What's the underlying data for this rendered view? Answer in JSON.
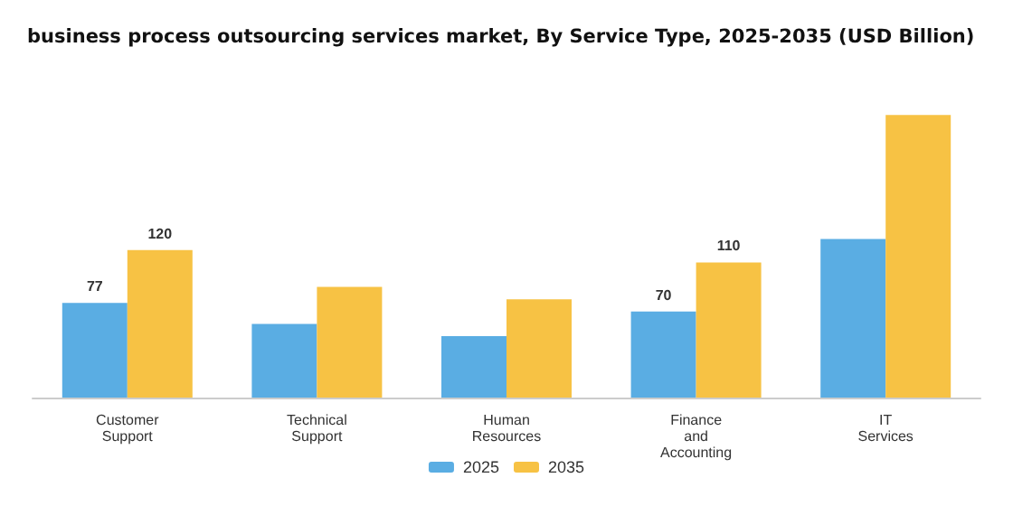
{
  "chart_data": {
    "type": "bar",
    "title": "business process outsourcing services market, By Service Type, 2025-2035 (USD Billion)",
    "categories": [
      "Customer\nSupport",
      "Technical\nSupport",
      "Human\nResources",
      "Finance\nand\nAccounting",
      "IT\nServices"
    ],
    "series": [
      {
        "name": "2025",
        "color": "#5aade3",
        "values": [
          77,
          60,
          50,
          70,
          129
        ],
        "value_labels": [
          "77",
          null,
          null,
          "70",
          null
        ]
      },
      {
        "name": "2035",
        "color": "#f7c244",
        "values": [
          120,
          90,
          80,
          110,
          230
        ],
        "value_labels": [
          "120",
          null,
          null,
          "110",
          null
        ]
      }
    ],
    "legend": "bottom"
  }
}
